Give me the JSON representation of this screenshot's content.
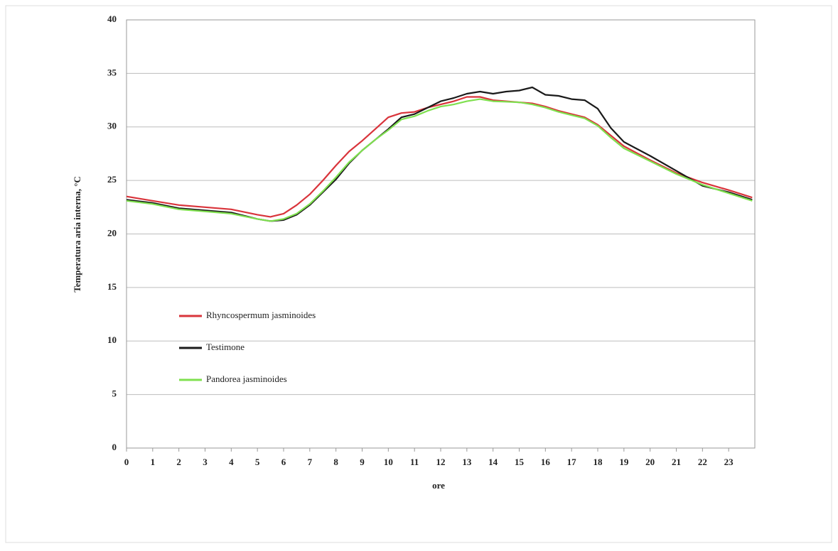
{
  "chart_data": {
    "type": "line",
    "y_label": "Temperatura aria interna, °C",
    "x_label": "ore",
    "x": [
      0,
      1,
      2,
      3,
      4,
      5,
      5.5,
      6,
      6.5,
      7,
      7.5,
      8,
      8.5,
      9,
      9.5,
      10,
      10.5,
      11,
      11.5,
      12,
      12.5,
      13,
      13.5,
      14,
      14.5,
      15,
      15.5,
      16,
      16.5,
      17,
      17.5,
      18,
      18.5,
      19,
      20,
      21,
      22,
      23,
      23.9
    ],
    "series": [
      {
        "name": "Rhyncospermum jasminoides",
        "color": "#d9343b",
        "values": [
          23.5,
          23.1,
          22.7,
          22.5,
          22.3,
          21.8,
          21.6,
          21.9,
          22.7,
          23.7,
          25.0,
          26.4,
          27.7,
          28.7,
          29.8,
          30.9,
          31.3,
          31.4,
          31.8,
          32.1,
          32.4,
          32.8,
          32.8,
          32.5,
          32.4,
          32.3,
          32.2,
          31.9,
          31.5,
          31.2,
          30.9,
          30.2,
          29.2,
          28.2,
          26.9,
          25.7,
          24.8,
          24.1,
          23.4
        ]
      },
      {
        "name": "Testimone",
        "color": "#1a1a1a",
        "values": [
          23.2,
          22.9,
          22.4,
          22.2,
          22.0,
          21.4,
          21.2,
          21.3,
          21.8,
          22.7,
          23.9,
          25.1,
          26.6,
          27.8,
          28.8,
          29.8,
          30.9,
          31.2,
          31.8,
          32.4,
          32.7,
          33.1,
          33.3,
          33.1,
          33.3,
          33.4,
          33.7,
          33.0,
          32.9,
          32.6,
          32.5,
          31.7,
          29.9,
          28.6,
          27.3,
          25.9,
          24.5,
          23.9,
          23.2
        ]
      },
      {
        "name": "Pandorea jasminoides",
        "color": "#7fe04f",
        "values": [
          23.1,
          22.8,
          22.3,
          22.1,
          21.9,
          21.4,
          21.2,
          21.4,
          21.9,
          22.8,
          24.0,
          25.3,
          26.7,
          27.8,
          28.8,
          29.7,
          30.7,
          31.0,
          31.5,
          31.9,
          32.1,
          32.4,
          32.6,
          32.4,
          32.35,
          32.3,
          32.1,
          31.8,
          31.4,
          31.1,
          30.8,
          30.1,
          29.0,
          28.0,
          26.8,
          25.6,
          24.6,
          23.8,
          23.1
        ]
      }
    ],
    "xlim": [
      0,
      24
    ],
    "xticks": [
      0,
      1,
      2,
      3,
      4,
      5,
      6,
      7,
      8,
      9,
      10,
      11,
      12,
      13,
      14,
      15,
      16,
      17,
      18,
      19,
      20,
      21,
      22,
      23
    ],
    "ylim": [
      0,
      40
    ],
    "yticks": [
      0,
      5,
      10,
      15,
      20,
      25,
      30,
      35,
      40
    ],
    "grid": true
  }
}
